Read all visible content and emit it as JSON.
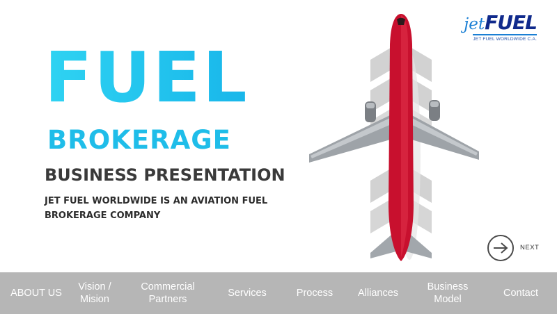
{
  "hero": {
    "title": "FUEL",
    "subtitle": "BROKERAGE",
    "heading": "BUSINESS PRESENTATION",
    "tagline_line1": "JET FUEL WORLDWIDE IS AN AVIATION FUEL",
    "tagline_line2": "BROKERAGE COMPANY"
  },
  "logo": {
    "jet": "jet",
    "fuel": "FUEL",
    "subtitle": "JET FUEL WORLDWIDE C.A."
  },
  "next_button": {
    "label": "NEXT",
    "icon": "arrow-right-icon"
  },
  "nav": {
    "items": [
      {
        "label": "ABOUT US"
      },
      {
        "label": "Vision /\nMision"
      },
      {
        "label": "Commercial\nPartners"
      },
      {
        "label": "Services"
      },
      {
        "label": "Process"
      },
      {
        "label": "Alliances"
      },
      {
        "label": "Business\nModel"
      },
      {
        "label": "Contact"
      }
    ]
  },
  "colors": {
    "accent": "#1ec0ec",
    "dark_text": "#3a3a3a",
    "nav_bg": "#b6b6b6",
    "plane_red": "#c8102e",
    "logo_blue": "#102a8c"
  }
}
